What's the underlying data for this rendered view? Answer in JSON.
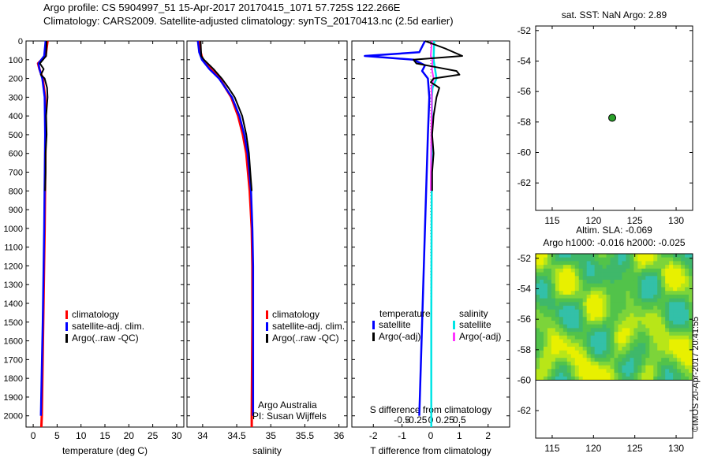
{
  "title_line1": "Argo profile: CS 5904997_51 15-Apr-2017 20170415_1071 57.725S 122.266E",
  "title_line2": "Climatology: CARS2009. Satellite-adjusted climatology: synTS_20170413.nc (2.5d earlier)",
  "side_text": "©IMOS 20-Apr-2017 20:41:55",
  "depth_axis": {
    "ticks": [
      0,
      100,
      200,
      300,
      400,
      500,
      600,
      700,
      800,
      900,
      1000,
      1100,
      1200,
      1300,
      1400,
      1500,
      1600,
      1700,
      1800,
      1900,
      2000
    ],
    "range": [
      0,
      2060
    ]
  },
  "colors": {
    "climatology": "#ff0000",
    "satellite": "#0000ff",
    "argo": "#000000",
    "sat_salinity": "#00e5e5",
    "argo_salinity": "#ff33ff",
    "float": "#2aa02a"
  },
  "chart_data": [
    {
      "type": "line",
      "panel": "temperature",
      "xlabel": "temperature (deg C)",
      "xlim": [
        -1.5,
        31.5
      ],
      "xticks": [
        0,
        5,
        10,
        15,
        20,
        25,
        30
      ],
      "ylabel": "depth",
      "legend": [
        "climatology",
        "satellite-adj. clim.",
        "Argo(..raw -QC)"
      ],
      "series": [
        {
          "name": "climatology",
          "depth": [
            0,
            80,
            120,
            150,
            200,
            300,
            500,
            1000,
            1500,
            2000,
            2060
          ],
          "values": [
            3.0,
            2.6,
            1.0,
            1.3,
            2.0,
            2.5,
            2.6,
            2.4,
            2.1,
            1.8,
            1.7
          ]
        },
        {
          "name": "satellite-adj. clim.",
          "depth": [
            0,
            80,
            120,
            150,
            200,
            300,
            500,
            1000,
            1500,
            2000
          ],
          "values": [
            2.6,
            2.3,
            1.1,
            1.3,
            1.9,
            2.4,
            2.5,
            2.3,
            2.0,
            1.6
          ]
        },
        {
          "name": "Argo(..raw -QC)",
          "depth": [
            0,
            80,
            120,
            150,
            180,
            200,
            250,
            300,
            400,
            500,
            600,
            700,
            800
          ],
          "values": [
            2.8,
            2.7,
            1.4,
            2.2,
            1.6,
            2.4,
            2.9,
            3.0,
            2.7,
            2.8,
            2.6,
            2.6,
            2.5
          ]
        }
      ]
    },
    {
      "type": "line",
      "panel": "salinity",
      "xlabel": "salinity",
      "xlim": [
        33.77,
        36.12
      ],
      "xticks": [
        34,
        34.5,
        35,
        35.5,
        36
      ],
      "ylabel": "depth",
      "legend": [
        "climatology",
        "satellite-adj. clim.",
        "Argo(..raw -QC)"
      ],
      "notes": [
        "Argo Australia",
        "PI: Susan Wijffels"
      ],
      "series": [
        {
          "name": "climatology",
          "depth": [
            0,
            60,
            100,
            150,
            200,
            300,
            400,
            500,
            600,
            800,
            1000,
            1200,
            1500,
            2000,
            2060
          ],
          "values": [
            33.95,
            33.97,
            34.0,
            34.12,
            34.25,
            34.42,
            34.52,
            34.59,
            34.64,
            34.69,
            34.72,
            34.73,
            34.73,
            34.72,
            34.72
          ]
        },
        {
          "name": "satellite-adj. clim.",
          "depth": [
            0,
            60,
            100,
            150,
            200,
            300,
            400,
            500,
            600,
            800,
            1000,
            1200,
            1500,
            2000
          ],
          "values": [
            33.93,
            33.95,
            33.99,
            34.1,
            34.24,
            34.43,
            34.54,
            34.61,
            34.66,
            34.71,
            34.73,
            34.74,
            34.74,
            34.74
          ]
        },
        {
          "name": "Argo(..raw -QC)",
          "depth": [
            0,
            80,
            100,
            150,
            200,
            250,
            300,
            400,
            500,
            600,
            700,
            800
          ],
          "values": [
            33.97,
            33.98,
            34.02,
            34.16,
            34.28,
            34.38,
            34.47,
            34.58,
            34.64,
            34.68,
            34.7,
            34.72
          ]
        }
      ]
    },
    {
      "type": "line",
      "panel": "difference",
      "xlabel": "T difference from climatology",
      "xlim": [
        -2.75,
        2.75
      ],
      "xticks": [
        -2,
        -1,
        0,
        1,
        2
      ],
      "top_axis_label": "S difference from climatology",
      "top_ticks": [
        "-0.5",
        "-0.25",
        "0",
        "0.25",
        "0.5"
      ],
      "top_tick_values": [
        -0.5,
        -0.25,
        0,
        0.25,
        0.5
      ],
      "legend_headers": [
        "temperature",
        "salinity"
      ],
      "legend": [
        "satellite",
        "Argo(-adj)",
        "satellite",
        "Argo(-adj)"
      ],
      "series": [
        {
          "name": "temperature satellite",
          "depth": [
            0,
            60,
            80,
            100,
            130,
            160,
            200,
            300,
            500,
            1000,
            1500,
            2000
          ],
          "values": [
            -0.2,
            -0.4,
            -2.3,
            -0.6,
            -0.2,
            -0.3,
            -0.1,
            -0.05,
            -0.1,
            -0.2,
            -0.3,
            -0.4
          ]
        },
        {
          "name": "temperature Argo(-adj)",
          "depth": [
            0,
            40,
            80,
            100,
            120,
            140,
            160,
            180,
            200,
            220,
            250,
            300,
            400,
            500,
            600,
            700,
            800
          ],
          "values": [
            -0.2,
            0.5,
            1.1,
            -0.6,
            -0.5,
            0.2,
            0.9,
            1.0,
            0.1,
            0.0,
            0.3,
            0.2,
            0.1,
            0.05,
            0.1,
            0.05,
            0.05
          ]
        },
        {
          "name": "salinity satellite",
          "depth": [
            0,
            100,
            200,
            250,
            300,
            500,
            1000,
            1500,
            2000,
            2060
          ],
          "values": [
            0.06,
            0.05,
            0.1,
            0.03,
            0.02,
            0.02,
            0.015,
            0.01,
            0.01,
            0.01
          ]
        },
        {
          "name": "salinity Argo(-adj)",
          "depth": [
            0,
            80,
            100,
            150,
            200,
            250,
            300,
            500,
            800
          ],
          "values": [
            0.02,
            0.0,
            0.03,
            0.02,
            0.05,
            0.01,
            0.02,
            0.01,
            0.0
          ]
        }
      ]
    },
    {
      "type": "scatter",
      "panel": "map",
      "title": "sat. SST: NaN Argo: 2.89",
      "xlim": [
        113,
        132
      ],
      "ylim": [
        -63.8,
        -51.7
      ],
      "xticks": [
        115,
        120,
        125,
        130
      ],
      "yticks": [
        -52,
        -54,
        -56,
        -58,
        -60,
        -62
      ],
      "points": [
        {
          "lon": 122.266,
          "lat": -57.725
        }
      ]
    },
    {
      "type": "heatmap",
      "panel": "sla",
      "title": "Altim. SLA: -0.069",
      "subtitle": "Argo h1000: -0.016 h2000: -0.025",
      "xlim": [
        113,
        132
      ],
      "ylim": [
        -63.8,
        -51.7
      ],
      "xticks": [
        115,
        120,
        125,
        130
      ],
      "yticks": [
        -52,
        -54,
        -56,
        -58,
        -60,
        -62
      ],
      "data_extent_lat": [
        -60,
        -51.7
      ]
    }
  ]
}
